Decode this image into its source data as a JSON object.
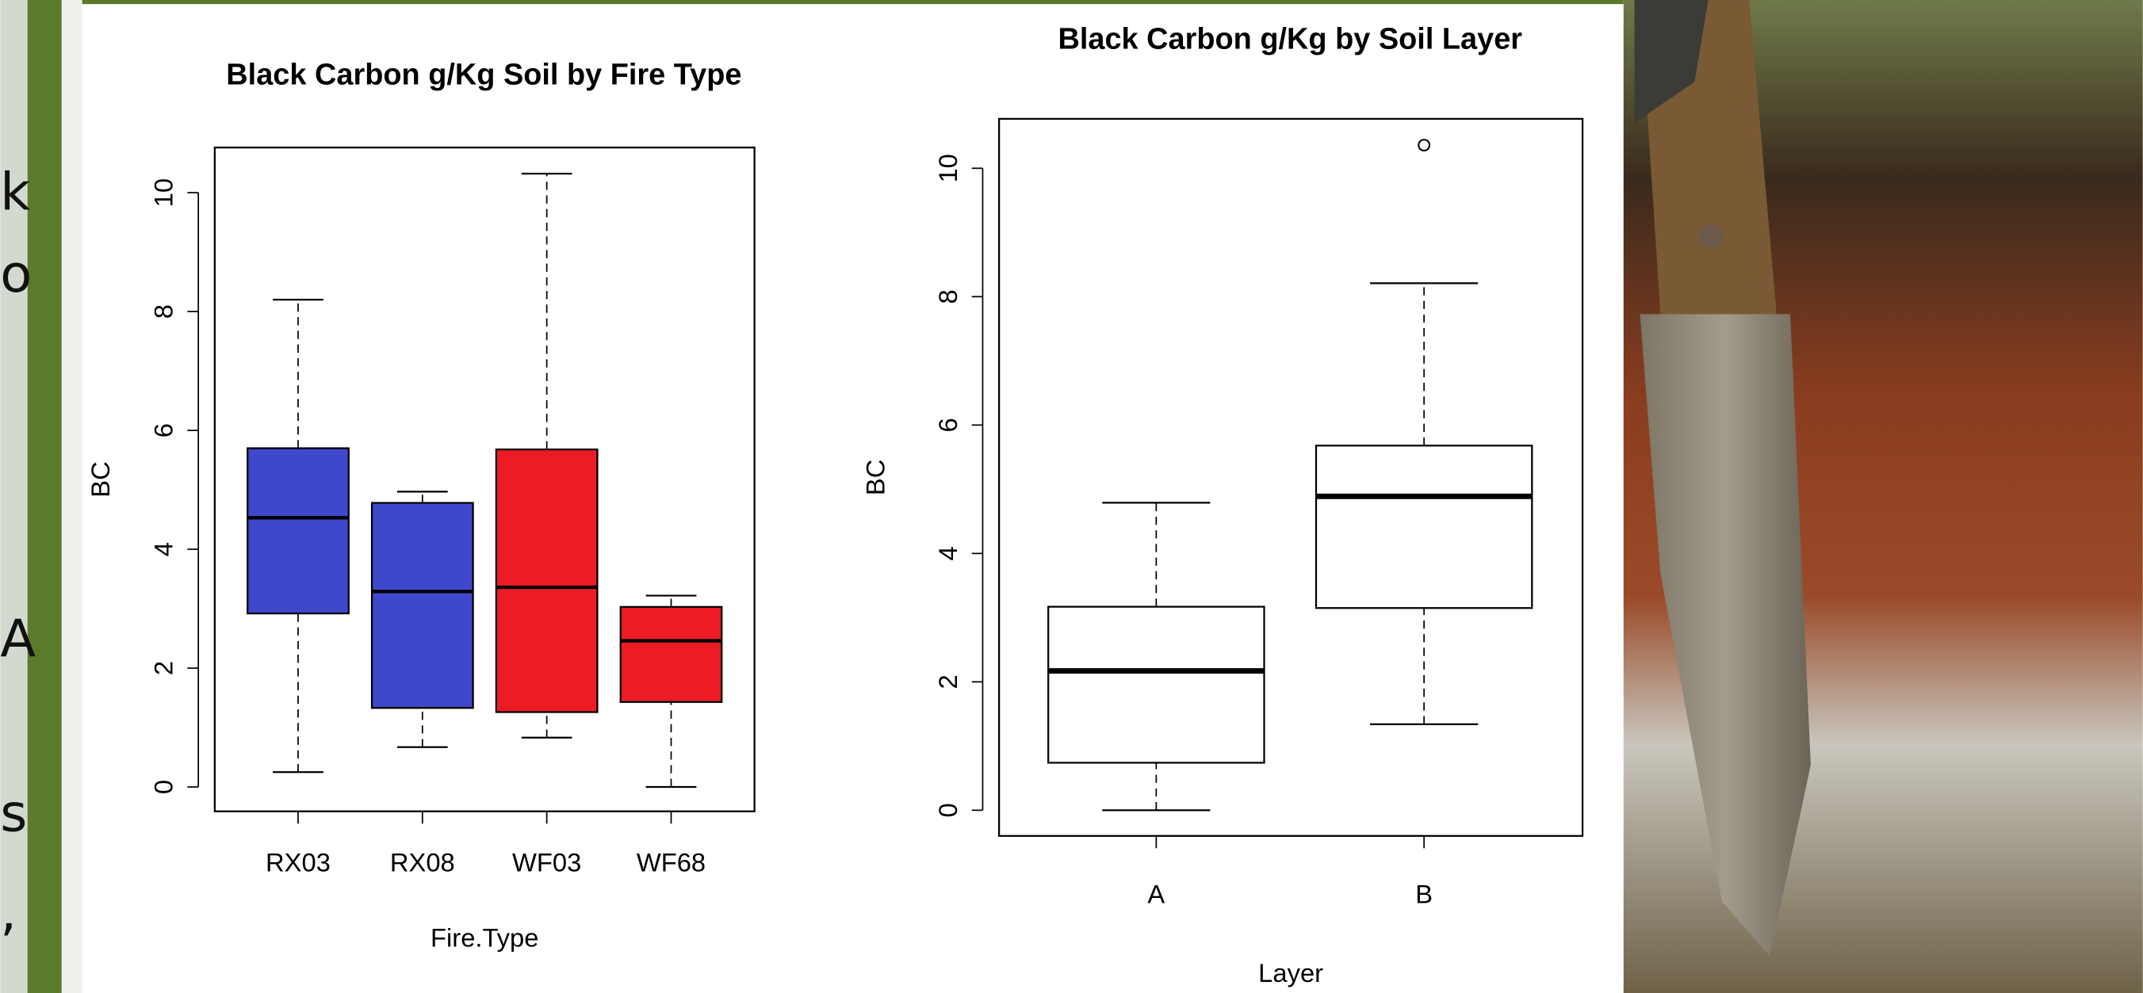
{
  "side_text": [
    "k",
    "o",
    "A",
    "s",
    ","
  ],
  "chart_data": [
    {
      "type": "boxplot",
      "title": "Black Carbon g/Kg Soil by Fire Type",
      "xlabel": "Fire.Type",
      "ylabel": "BC",
      "categories": [
        "RX03",
        "RX08",
        "WF03",
        "WF68"
      ],
      "colors": [
        "#3f48cc",
        "#3f48cc",
        "#ed1c24",
        "#ed1c24"
      ],
      "boxes": [
        {
          "min": 0.25,
          "q1": 2.92,
          "median": 4.53,
          "q3": 5.7,
          "max": 8.2,
          "outliers": []
        },
        {
          "min": 0.67,
          "q1": 1.33,
          "median": 3.29,
          "q3": 4.78,
          "max": 4.97,
          "outliers": []
        },
        {
          "min": 0.83,
          "q1": 1.26,
          "median": 3.36,
          "q3": 5.68,
          "max": 10.32,
          "outliers": []
        },
        {
          "min": 0,
          "q1": 1.43,
          "median": 2.46,
          "q3": 3.03,
          "max": 3.22,
          "outliers": []
        }
      ],
      "ylim": [
        -0.41,
        10.76
      ],
      "yticks": [
        0,
        2,
        4,
        6,
        8,
        10
      ]
    },
    {
      "type": "boxplot",
      "title": "Black Carbon g/Kg by Soil Layer",
      "xlabel": "Layer",
      "ylabel": "BC",
      "categories": [
        "A",
        "B"
      ],
      "colors": [
        "#ffffff",
        "#ffffff"
      ],
      "boxes": [
        {
          "min": 0,
          "q1": 0.74,
          "median": 2.17,
          "q3": 3.17,
          "max": 4.79,
          "outliers": []
        },
        {
          "min": 1.34,
          "q1": 3.15,
          "median": 4.89,
          "q3": 5.68,
          "max": 8.21,
          "outliers": [
            10.36
          ]
        }
      ],
      "ylim": [
        -0.4,
        10.77
      ],
      "yticks": [
        0,
        2,
        4,
        6,
        8,
        10
      ]
    }
  ]
}
